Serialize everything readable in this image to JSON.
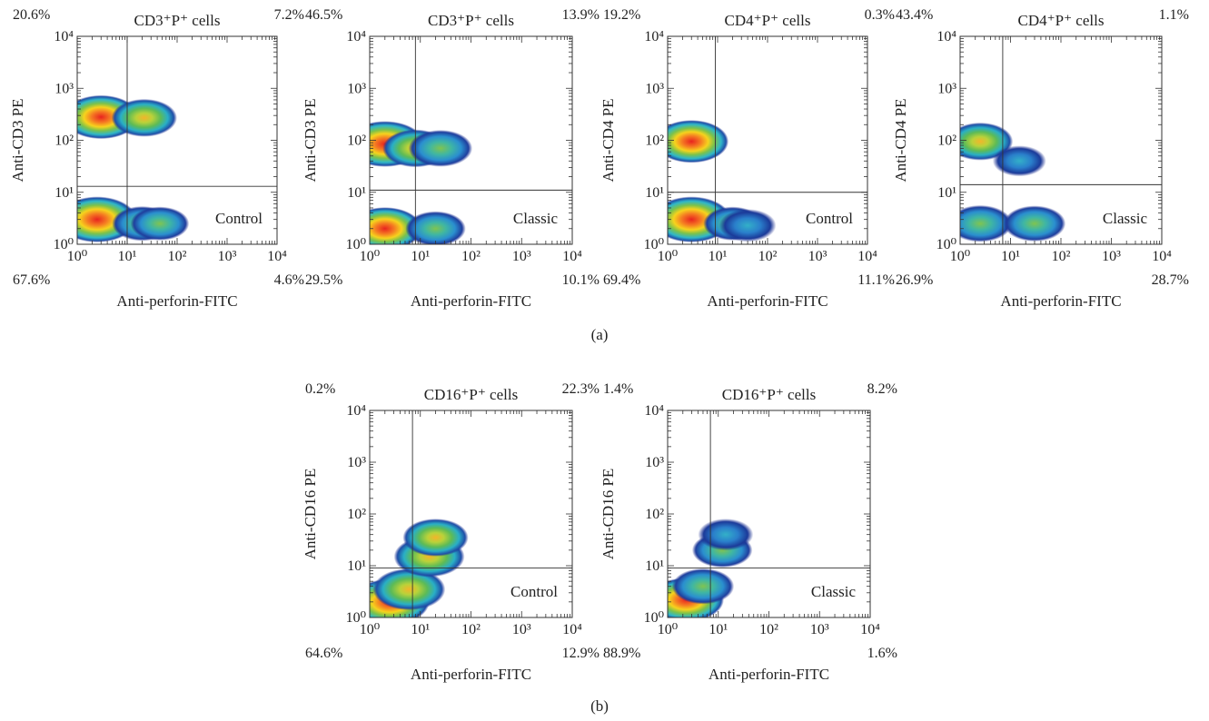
{
  "figure": {
    "group_labels": [
      "(a)",
      "(b)"
    ]
  },
  "chart_data": [
    {
      "type": "scatter",
      "title": "CD3⁺P⁺ cells",
      "xlabel": "Anti-perforin-FITC",
      "ylabel": "Anti-CD3 PE",
      "xscale": "log",
      "yscale": "log",
      "xlim": [
        1,
        10000
      ],
      "ylim": [
        1,
        10000
      ],
      "x_ticks": [
        "10⁰",
        "10¹",
        "10²",
        "10³",
        "10⁴"
      ],
      "y_ticks": [
        "10⁰",
        "10¹",
        "10²",
        "10³",
        "10⁴"
      ],
      "gate": {
        "x": 10,
        "y": 13
      },
      "quadrants": {
        "upper_left": "20.6%",
        "upper_right": "7.2%",
        "lower_left": "67.6%",
        "lower_right": "4.6%"
      },
      "condition": "Control",
      "populations": [
        {
          "x": 3,
          "y": 280,
          "intensity": 0.9
        },
        {
          "x": 22,
          "y": 270,
          "intensity": 0.6
        },
        {
          "x": 2.5,
          "y": 3,
          "intensity": 1.0
        },
        {
          "x": 20,
          "y": 2.5,
          "intensity": 0.45
        },
        {
          "x": 45,
          "y": 2.5,
          "intensity": 0.4
        }
      ]
    },
    {
      "type": "scatter",
      "title": "CD3⁺P⁺ cells",
      "xlabel": "Anti-perforin-FITC",
      "ylabel": "Anti-CD3 PE",
      "xscale": "log",
      "yscale": "log",
      "xlim": [
        1,
        10000
      ],
      "ylim": [
        1,
        10000
      ],
      "x_ticks": [
        "10⁰",
        "10¹",
        "10²",
        "10³",
        "10⁴"
      ],
      "y_ticks": [
        "10⁰",
        "10¹",
        "10²",
        "10³",
        "10⁴"
      ],
      "gate": {
        "x": 8,
        "y": 11
      },
      "quadrants": {
        "upper_left": "46.5%",
        "upper_right": "13.9%",
        "lower_left": "29.5%",
        "lower_right": "10.1%"
      },
      "condition": "Classic",
      "populations": [
        {
          "x": 2,
          "y": 85,
          "intensity": 1.0
        },
        {
          "x": 8,
          "y": 70,
          "intensity": 0.6
        },
        {
          "x": 25,
          "y": 70,
          "intensity": 0.55
        },
        {
          "x": 2,
          "y": 2,
          "intensity": 0.85
        },
        {
          "x": 20,
          "y": 2,
          "intensity": 0.45
        }
      ]
    },
    {
      "type": "scatter",
      "title": "CD4⁺P⁺ cells",
      "xlabel": "Anti-perforin-FITC",
      "ylabel": "Anti-CD4 PE",
      "xscale": "log",
      "yscale": "log",
      "xlim": [
        1,
        10000
      ],
      "ylim": [
        1,
        10000
      ],
      "x_ticks": [
        "10⁰",
        "10¹",
        "10²",
        "10³",
        "10⁴"
      ],
      "y_ticks": [
        "10⁰",
        "10¹",
        "10²",
        "10³",
        "10⁴"
      ],
      "gate": {
        "x": 9,
        "y": 10
      },
      "quadrants": {
        "upper_left": "19.2%",
        "upper_right": "0.3%",
        "lower_left": "69.4%",
        "lower_right": "11.1%"
      },
      "condition": "Control",
      "populations": [
        {
          "x": 3,
          "y": 95,
          "intensity": 0.85
        },
        {
          "x": 3,
          "y": 3,
          "intensity": 1.0
        },
        {
          "x": 20,
          "y": 2.5,
          "intensity": 0.4
        },
        {
          "x": 40,
          "y": 2.3,
          "intensity": 0.35
        }
      ]
    },
    {
      "type": "scatter",
      "title": "CD4⁺P⁺ cells",
      "xlabel": "Anti-perforin-FITC",
      "ylabel": "Anti-CD4 PE",
      "xscale": "log",
      "yscale": "log",
      "xlim": [
        1,
        10000
      ],
      "ylim": [
        1,
        10000
      ],
      "x_ticks": [
        "10⁰",
        "10¹",
        "10²",
        "10³",
        "10⁴"
      ],
      "y_ticks": [
        "10⁰",
        "10¹",
        "10²",
        "10³",
        "10⁴"
      ],
      "gate": {
        "x": 7,
        "y": 14
      },
      "quadrants": {
        "upper_left": "43.4%",
        "upper_right": "1.1%",
        "lower_left": "26.9%",
        "lower_right": "28.7%"
      },
      "condition": "Classic",
      "populations": [
        {
          "x": 2.5,
          "y": 95,
          "intensity": 0.6
        },
        {
          "x": 15,
          "y": 40,
          "intensity": 0.25
        },
        {
          "x": 2.5,
          "y": 2.5,
          "intensity": 0.55
        },
        {
          "x": 30,
          "y": 2.5,
          "intensity": 0.5
        }
      ]
    },
    {
      "type": "scatter",
      "title": "CD16⁺P⁺ cells",
      "xlabel": "Anti-perforin-FITC",
      "ylabel": "Anti-CD16 PE",
      "xscale": "log",
      "yscale": "log",
      "xlim": [
        1,
        10000
      ],
      "ylim": [
        1,
        10000
      ],
      "x_ticks": [
        "10⁰",
        "10¹",
        "10²",
        "10³",
        "10⁴"
      ],
      "y_ticks": [
        "10⁰",
        "10¹",
        "10²",
        "10³",
        "10⁴"
      ],
      "gate": {
        "x": 7,
        "y": 9
      },
      "quadrants": {
        "upper_left": "0.2%",
        "upper_right": "22.3%",
        "lower_left": "64.6%",
        "lower_right": "12.9%"
      },
      "condition": "Control",
      "populations": [
        {
          "x": 2.5,
          "y": 2,
          "intensity": 1.0
        },
        {
          "x": 6,
          "y": 3.5,
          "intensity": 0.8
        },
        {
          "x": 15,
          "y": 15,
          "intensity": 0.75
        },
        {
          "x": 20,
          "y": 35,
          "intensity": 0.6
        }
      ]
    },
    {
      "type": "scatter",
      "title": "CD16⁺P⁺ cells",
      "xlabel": "Anti-perforin-FITC",
      "ylabel": "Anti-CD16 PE",
      "xscale": "log",
      "yscale": "log",
      "xlim": [
        1,
        10000
      ],
      "ylim": [
        1,
        10000
      ],
      "x_ticks": [
        "10⁰",
        "10¹",
        "10²",
        "10³",
        "10⁴"
      ],
      "y_ticks": [
        "10⁰",
        "10¹",
        "10²",
        "10³",
        "10⁴"
      ],
      "gate": {
        "x": 7,
        "y": 9
      },
      "quadrants": {
        "upper_left": "1.4%",
        "upper_right": "8.2%",
        "lower_left": "88.9%",
        "lower_right": "1.6%"
      },
      "condition": "Classic",
      "populations": [
        {
          "x": 2.3,
          "y": 2.2,
          "intensity": 0.9
        },
        {
          "x": 5,
          "y": 4,
          "intensity": 0.5
        },
        {
          "x": 12,
          "y": 20,
          "intensity": 0.45
        },
        {
          "x": 14,
          "y": 40,
          "intensity": 0.3
        }
      ]
    }
  ]
}
